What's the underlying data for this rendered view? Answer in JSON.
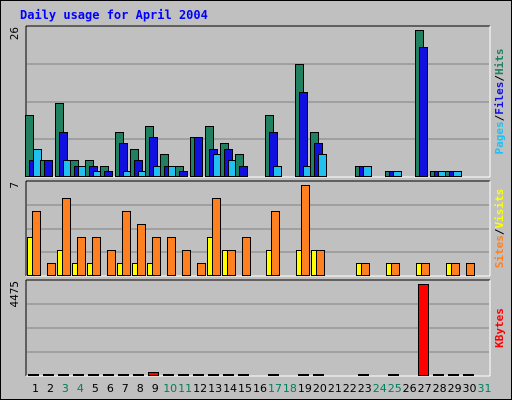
{
  "chart_data": {
    "type": "bar",
    "title": "Daily usage for April 2004",
    "days": [
      "1",
      "2",
      "3",
      "4",
      "5",
      "6",
      "7",
      "8",
      "9",
      "10",
      "11",
      "12",
      "13",
      "14",
      "15",
      "16",
      "17",
      "18",
      "19",
      "20",
      "21",
      "22",
      "23",
      "24",
      "25",
      "26",
      "27",
      "28",
      "29",
      "30",
      "31"
    ],
    "weekend_days": [
      3,
      4,
      10,
      11,
      17,
      18,
      24,
      25,
      31
    ],
    "panels": [
      {
        "id": "hits",
        "ymax_label": "26",
        "ymax": 26,
        "series": [
          {
            "name": "Hits",
            "color": "#208060",
            "values": [
              11,
              3,
              13,
              3,
              3,
              2,
              8,
              5,
              9,
              4,
              2,
              7,
              9,
              6,
              4,
              0,
              11,
              0,
              20,
              8,
              0,
              0,
              2,
              0,
              1,
              0,
              26,
              1,
              1,
              0,
              0
            ]
          },
          {
            "name": "Files",
            "color": "#1010e0",
            "values": [
              3,
              3,
              8,
              2,
              2,
              1,
              6,
              3,
              7,
              2,
              1,
              7,
              5,
              5,
              2,
              0,
              8,
              0,
              15,
              6,
              0,
              0,
              2,
              0,
              1,
              0,
              23,
              1,
              1,
              0,
              0
            ]
          },
          {
            "name": "Pages",
            "color": "#20c0f0",
            "values": [
              5,
              0,
              3,
              2,
              1,
              0,
              1,
              1,
              2,
              2,
              0,
              0,
              4,
              3,
              0,
              0,
              2,
              0,
              2,
              4,
              0,
              0,
              2,
              0,
              1,
              0,
              0,
              1,
              1,
              0,
              0
            ]
          }
        ],
        "axis_labels": [
          {
            "text": "Pages",
            "color": "#20c0f0"
          },
          {
            "text": "/",
            "color": "#000000"
          },
          {
            "text": "Files",
            "color": "#1010e0"
          },
          {
            "text": "/",
            "color": "#000000"
          },
          {
            "text": "Hits",
            "color": "#208060"
          }
        ]
      },
      {
        "id": "visits",
        "ymax_label": "7",
        "ymax": 7,
        "series": [
          {
            "name": "Visits",
            "color": "#ffff00",
            "values": [
              3,
              0,
              2,
              1,
              1,
              0,
              1,
              1,
              1,
              0,
              0,
              0,
              3,
              2,
              0,
              0,
              2,
              0,
              2,
              2,
              0,
              0,
              1,
              0,
              1,
              0,
              1,
              0,
              1,
              0,
              0
            ]
          },
          {
            "name": "Sites",
            "color": "#ff8020",
            "values": [
              5,
              1,
              6,
              3,
              3,
              2,
              5,
              4,
              3,
              3,
              2,
              1,
              6,
              2,
              3,
              0,
              5,
              0,
              7,
              2,
              0,
              0,
              1,
              0,
              1,
              0,
              1,
              0,
              1,
              1,
              0
            ]
          }
        ],
        "axis_labels": [
          {
            "text": "Sites",
            "color": "#ff8020"
          },
          {
            "text": "/",
            "color": "#000000"
          },
          {
            "text": "Visits",
            "color": "#ffff00"
          }
        ]
      },
      {
        "id": "kbytes",
        "ymax_label": "4475",
        "ymax": 4475,
        "series": [
          {
            "name": "KBytes",
            "color": "#ff0000",
            "values": [
              20,
              20,
              20,
              20,
              20,
              20,
              20,
              20,
              200,
              20,
              20,
              20,
              20,
              20,
              20,
              0,
              20,
              0,
              20,
              20,
              0,
              0,
              20,
              0,
              20,
              0,
              4475,
              20,
              20,
              20,
              0
            ]
          }
        ],
        "axis_labels": [
          {
            "text": "KBytes",
            "color": "#ff0000"
          }
        ]
      }
    ],
    "colors": {
      "background": "#c0c0c0",
      "plot_area": "#c0c0c0",
      "title": "#0000ff",
      "weekday_label": "#000000",
      "weekend_label": "#00805c",
      "grid": "#808080"
    }
  }
}
